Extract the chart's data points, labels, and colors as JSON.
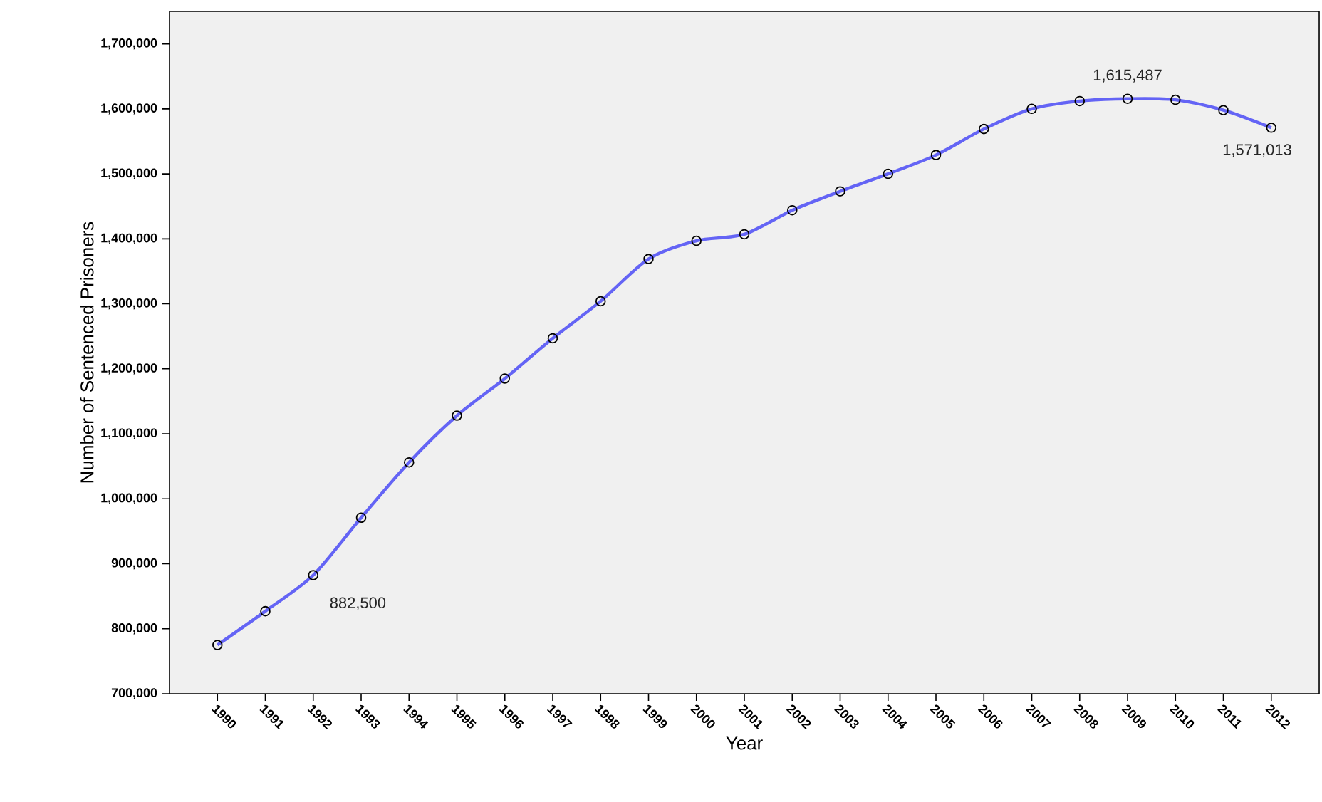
{
  "chart_data": {
    "type": "line",
    "xlabel": "Year",
    "ylabel": "Number of Sentenced Prisoners",
    "categories": [
      "1990",
      "1991",
      "1992",
      "1993",
      "1994",
      "1995",
      "1996",
      "1997",
      "1998",
      "1999",
      "2000",
      "2001",
      "2002",
      "2003",
      "2004",
      "2005",
      "2006",
      "2007",
      "2008",
      "2009",
      "2010",
      "2011",
      "2012"
    ],
    "series": [
      {
        "color": "#6464f5",
        "values": [
          775000,
          827000,
          882500,
          971000,
          1056000,
          1128000,
          1185000,
          1247000,
          1304000,
          1369000,
          1397000,
          1407000,
          1444000,
          1473000,
          1500000,
          1529000,
          1569000,
          1600000,
          1612000,
          1615487,
          1614000,
          1598000,
          1571013
        ],
        "value_labels": [
          null,
          null,
          "882,500",
          null,
          null,
          null,
          null,
          null,
          null,
          null,
          null,
          null,
          null,
          null,
          null,
          null,
          null,
          null,
          null,
          "1,615,487",
          null,
          null,
          "1,571,013"
        ]
      }
    ],
    "ylim": [
      700000,
      1750000
    ],
    "yticks": [
      {
        "value": 700000,
        "label": "700,000"
      },
      {
        "value": 800000,
        "label": "800,000"
      },
      {
        "value": 900000,
        "label": "900,000"
      },
      {
        "value": 1000000,
        "label": "1,000,000"
      },
      {
        "value": 1100000,
        "label": "1,100,000"
      },
      {
        "value": 1200000,
        "label": "1,200,000"
      },
      {
        "value": 1300000,
        "label": "1,300,000"
      },
      {
        "value": 1400000,
        "label": "1,400,000"
      },
      {
        "value": 1500000,
        "label": "1,500,000"
      },
      {
        "value": 1600000,
        "label": "1,600,000"
      },
      {
        "value": 1700000,
        "label": "1,700,000"
      }
    ],
    "grid": false,
    "marker": "circle",
    "line_style": "solid"
  }
}
